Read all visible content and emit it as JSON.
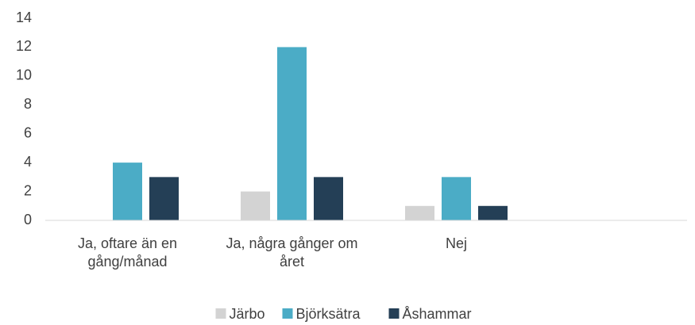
{
  "chart_data": {
    "type": "bar",
    "categories": [
      "Ja, oftare än en gång/månad",
      "Ja, några gånger om året",
      "Nej"
    ],
    "series": [
      {
        "name": "Järbo",
        "color": "#d3d3d3",
        "values": [
          0,
          2,
          1
        ]
      },
      {
        "name": "Björksätra",
        "color": "#4bacc6",
        "values": [
          4,
          12,
          3
        ]
      },
      {
        "name": "Åshammar",
        "color": "#243f56",
        "values": [
          3,
          3,
          1
        ]
      }
    ],
    "ylim": [
      0,
      14
    ],
    "yticks": [
      0,
      2,
      4,
      6,
      8,
      10,
      12,
      14
    ],
    "grid": false,
    "legend": "bottom"
  }
}
